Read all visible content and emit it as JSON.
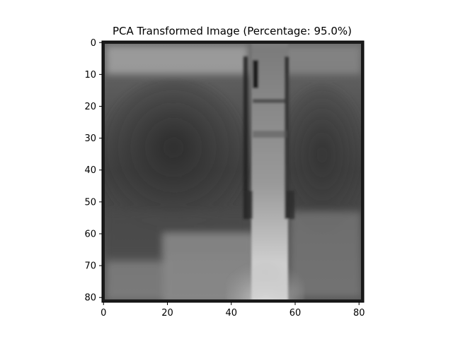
{
  "chart_data": {
    "type": "heatmap",
    "title": "PCA Transformed Image (Percentage: 95.0%)",
    "xlabel": "",
    "ylabel": "",
    "colormap": "gray",
    "image_size": [
      82,
      82
    ],
    "xlim": [
      -0.5,
      81.5
    ],
    "ylim": [
      81.5,
      -0.5
    ],
    "x_ticks": [
      0,
      20,
      40,
      60,
      80
    ],
    "x_tick_labels": [
      "0",
      "20",
      "40",
      "60",
      "80"
    ],
    "y_ticks": [
      0,
      10,
      20,
      30,
      40,
      50,
      60,
      70,
      80
    ],
    "y_tick_labels": [
      "0",
      "10",
      "20",
      "30",
      "40",
      "50",
      "60",
      "70",
      "80"
    ],
    "grid": false
  }
}
